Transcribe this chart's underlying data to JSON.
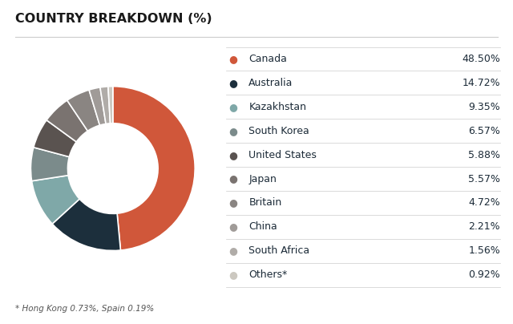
{
  "title": "COUNTRY BREAKDOWN (%)",
  "footnote": "* Hong Kong 0.73%, Spain 0.19%",
  "categories": [
    "Canada",
    "Australia",
    "Kazakhstan",
    "South Korea",
    "United States",
    "Japan",
    "Britain",
    "China",
    "South Africa",
    "Others*"
  ],
  "values": [
    48.5,
    14.72,
    9.35,
    6.57,
    5.88,
    5.57,
    4.72,
    2.21,
    1.56,
    0.92
  ],
  "labels": [
    "48.50%",
    "14.72%",
    "9.35%",
    "6.57%",
    "5.88%",
    "5.57%",
    "4.72%",
    "2.21%",
    "1.56%",
    "0.92%"
  ],
  "colors": [
    "#D0573A",
    "#1C2F3C",
    "#7FA8A8",
    "#7B8B8B",
    "#5A5350",
    "#7A7370",
    "#8A8582",
    "#A09B98",
    "#B0ACA8",
    "#CCC8C0"
  ],
  "bg_color": "#FFFFFF",
  "title_color": "#1A1A1A",
  "text_color": "#1C2B38",
  "divider_color": "#CCCCCC",
  "title_fontsize": 11.5,
  "legend_fontsize": 9,
  "footnote_fontsize": 7.5
}
